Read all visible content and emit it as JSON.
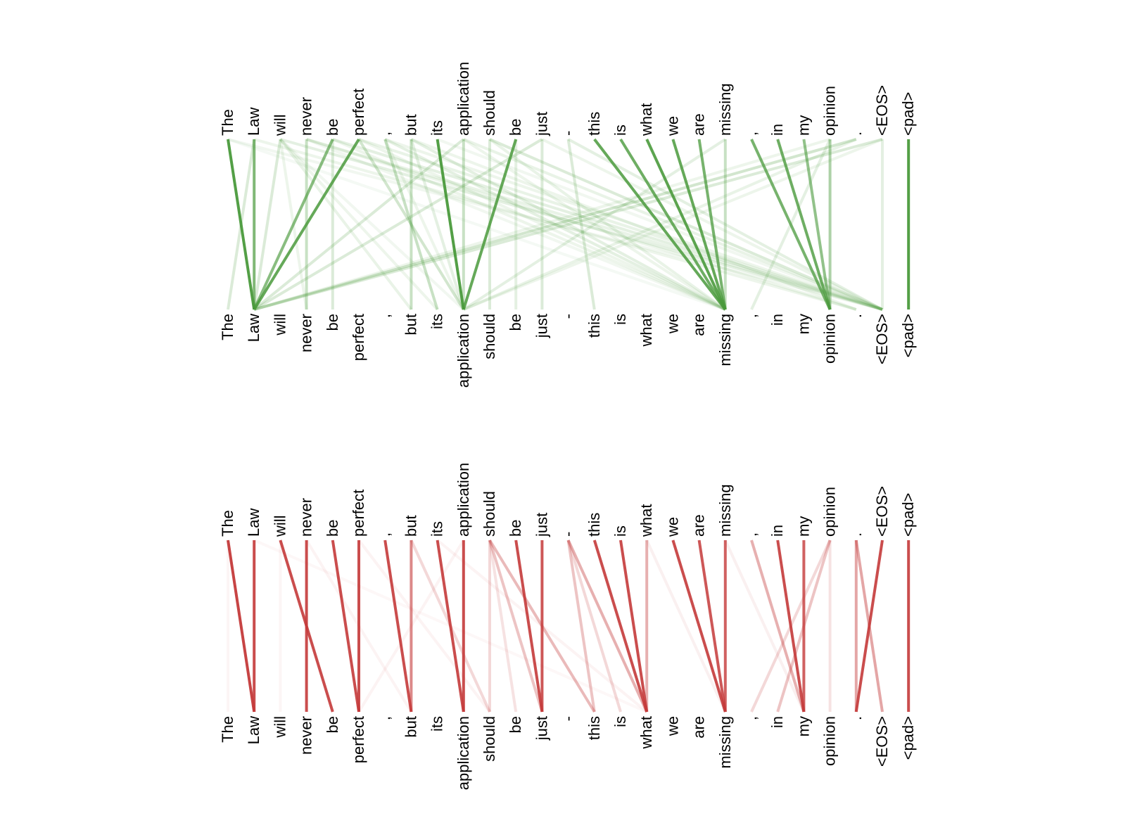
{
  "tokens": [
    "The",
    "Law",
    "will",
    "never",
    "be",
    "perfect",
    ",",
    "but",
    "its",
    "application",
    "should",
    "be",
    "just",
    "-",
    "this",
    "is",
    "what",
    "we",
    "are",
    "missing",
    ",",
    "in",
    "my",
    "opinion",
    ".",
    "<EOS>",
    "<pad>"
  ],
  "colors": {
    "top_panel": "#4a9a3c",
    "bottom_panel": "#c43a3a"
  },
  "panels": [
    {
      "id": "attention-top",
      "color_key": "top_panel",
      "links": [
        [
          0,
          1,
          0.95
        ],
        [
          1,
          1,
          0.7
        ],
        [
          1,
          0,
          0.2
        ],
        [
          2,
          1,
          0.2
        ],
        [
          2,
          3,
          0.1
        ],
        [
          2,
          7,
          0.12
        ],
        [
          2,
          8,
          0.1
        ],
        [
          2,
          25,
          0.15
        ],
        [
          3,
          3,
          0.3
        ],
        [
          3,
          25,
          0.12
        ],
        [
          4,
          1,
          0.65
        ],
        [
          4,
          4,
          0.2
        ],
        [
          4,
          25,
          0.15
        ],
        [
          5,
          1,
          0.85
        ],
        [
          5,
          9,
          0.25
        ],
        [
          6,
          8,
          0.3
        ],
        [
          6,
          19,
          0.15
        ],
        [
          6,
          25,
          0.1
        ],
        [
          7,
          7,
          0.3
        ],
        [
          7,
          9,
          0.15
        ],
        [
          7,
          19,
          0.15
        ],
        [
          8,
          9,
          0.95
        ],
        [
          9,
          1,
          0.2
        ],
        [
          9,
          9,
          0.3
        ],
        [
          9,
          25,
          0.12
        ],
        [
          10,
          10,
          0.2
        ],
        [
          10,
          25,
          0.2
        ],
        [
          11,
          9,
          0.85
        ],
        [
          11,
          11,
          0.15
        ],
        [
          12,
          1,
          0.2
        ],
        [
          12,
          12,
          0.2
        ],
        [
          13,
          14,
          0.2
        ],
        [
          13,
          25,
          0.15
        ],
        [
          14,
          19,
          0.85
        ],
        [
          15,
          19,
          0.8
        ],
        [
          16,
          19,
          0.9
        ],
        [
          17,
          19,
          0.85
        ],
        [
          18,
          19,
          0.75
        ],
        [
          19,
          19,
          0.3
        ],
        [
          19,
          9,
          0.15
        ],
        [
          20,
          23,
          0.75
        ],
        [
          21,
          23,
          0.8
        ],
        [
          22,
          23,
          0.6
        ],
        [
          23,
          23,
          0.45
        ],
        [
          23,
          20,
          0.15
        ],
        [
          24,
          1,
          0.25
        ],
        [
          25,
          1,
          0.2
        ],
        [
          25,
          25,
          0.15
        ],
        [
          26,
          26,
          0.95
        ],
        [
          0,
          25,
          0.08
        ],
        [
          1,
          24,
          0.1
        ],
        [
          3,
          24,
          0.1
        ],
        [
          5,
          25,
          0.12
        ],
        [
          7,
          24,
          0.1
        ],
        [
          10,
          19,
          0.12
        ],
        [
          12,
          25,
          0.1
        ],
        [
          4,
          19,
          0.1
        ],
        [
          2,
          9,
          0.08
        ],
        [
          6,
          9,
          0.1
        ],
        [
          8,
          25,
          0.08
        ],
        [
          9,
          19,
          0.1
        ],
        [
          5,
          19,
          0.1
        ],
        [
          3,
          19,
          0.08
        ],
        [
          0,
          19,
          0.06
        ],
        [
          24,
          9,
          0.12
        ],
        [
          25,
          9,
          0.1
        ],
        [
          23,
          1,
          0.1
        ]
      ]
    },
    {
      "id": "attention-bottom",
      "color_key": "bottom_panel",
      "links": [
        [
          0,
          1,
          0.95
        ],
        [
          1,
          1,
          0.9
        ],
        [
          2,
          4,
          0.9
        ],
        [
          3,
          3,
          0.9
        ],
        [
          4,
          5,
          0.9
        ],
        [
          5,
          5,
          0.9
        ],
        [
          6,
          7,
          0.9
        ],
        [
          7,
          7,
          0.6
        ],
        [
          7,
          10,
          0.2
        ],
        [
          8,
          9,
          0.9
        ],
        [
          9,
          9,
          0.9
        ],
        [
          10,
          12,
          0.3
        ],
        [
          10,
          14,
          0.35
        ],
        [
          10,
          10,
          0.2
        ],
        [
          10,
          11,
          0.15
        ],
        [
          11,
          12,
          0.9
        ],
        [
          12,
          12,
          0.85
        ],
        [
          13,
          14,
          0.3
        ],
        [
          13,
          16,
          0.4
        ],
        [
          13,
          15,
          0.2
        ],
        [
          14,
          16,
          0.9
        ],
        [
          15,
          16,
          0.9
        ],
        [
          16,
          16,
          0.4
        ],
        [
          17,
          19,
          0.9
        ],
        [
          18,
          19,
          0.85
        ],
        [
          19,
          19,
          0.8
        ],
        [
          20,
          22,
          0.4
        ],
        [
          21,
          22,
          0.9
        ],
        [
          22,
          22,
          0.8
        ],
        [
          23,
          20,
          0.2
        ],
        [
          23,
          21,
          0.3
        ],
        [
          23,
          23,
          0.15
        ],
        [
          24,
          24,
          0.45
        ],
        [
          24,
          25,
          0.45
        ],
        [
          25,
          24,
          0.9
        ],
        [
          26,
          26,
          0.9
        ],
        [
          0,
          0,
          0.05
        ],
        [
          2,
          2,
          0.05
        ],
        [
          3,
          7,
          0.06
        ],
        [
          5,
          10,
          0.06
        ],
        [
          8,
          16,
          0.06
        ],
        [
          16,
          19,
          0.08
        ],
        [
          19,
          22,
          0.08
        ],
        [
          1,
          16,
          0.04
        ],
        [
          9,
          5,
          0.06
        ]
      ]
    }
  ]
}
